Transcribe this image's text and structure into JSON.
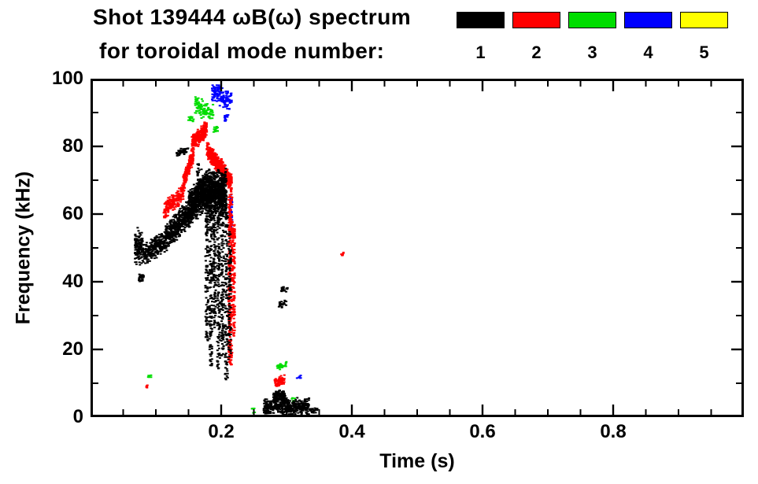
{
  "chart_data": {
    "type": "scatter",
    "title": "Shot 139444 ωB(ω) spectrum",
    "subtitle": "for toroidal mode number:",
    "xlabel": "Time (s)",
    "ylabel": "Frequency (kHz)",
    "xlim": [
      0.0,
      1.0
    ],
    "ylim": [
      0,
      100
    ],
    "xticks": [
      {
        "v": 0.2,
        "label": "0.2"
      },
      {
        "v": 0.4,
        "label": "0.4"
      },
      {
        "v": 0.6,
        "label": "0.6"
      },
      {
        "v": 0.8,
        "label": "0.8"
      }
    ],
    "yticks": [
      {
        "v": 0,
        "label": "0"
      },
      {
        "v": 20,
        "label": "20"
      },
      {
        "v": 40,
        "label": "40"
      },
      {
        "v": 60,
        "label": "60"
      },
      {
        "v": 80,
        "label": "80"
      },
      {
        "v": 100,
        "label": "100"
      }
    ],
    "x_minor_step": 0.05,
    "y_minor_step": 10,
    "grid": false,
    "legend_position": "top-right",
    "series": [
      {
        "name": "1",
        "color": "#000000",
        "clusters": [
          {
            "kind": "band",
            "t": [
              0.068,
              0.08
            ],
            "f": [
              50,
              50
            ],
            "hw": 6,
            "n": 120
          },
          {
            "kind": "band",
            "t": [
              0.074,
              0.082
            ],
            "f": [
              41,
              41.5
            ],
            "hw": 1.5,
            "n": 25
          },
          {
            "kind": "band",
            "t": [
              0.08,
              0.115
            ],
            "f": [
              48,
              52
            ],
            "hw": 3.5,
            "n": 260
          },
          {
            "kind": "band",
            "t": [
              0.115,
              0.15
            ],
            "f": [
              53,
              60
            ],
            "hw": 4.5,
            "n": 420
          },
          {
            "kind": "band",
            "t": [
              0.15,
              0.18
            ],
            "f": [
              61,
              68
            ],
            "hw": 6,
            "n": 650
          },
          {
            "kind": "band",
            "t": [
              0.18,
              0.208
            ],
            "f": [
              66,
              66
            ],
            "hw": 8,
            "n": 700
          },
          {
            "kind": "band",
            "t": [
              0.132,
              0.15
            ],
            "f": [
              78,
              79
            ],
            "hw": 1.2,
            "n": 45
          },
          {
            "kind": "vline",
            "t": 0.165,
            "f": [
              62,
              75
            ],
            "jit": 0.002,
            "n": 40
          },
          {
            "kind": "vline",
            "t": 0.171,
            "f": [
              60,
              74
            ],
            "jit": 0.002,
            "n": 36
          },
          {
            "kind": "vline",
            "t": 0.178,
            "f": [
              22,
              66
            ],
            "jit": 0.0022,
            "n": 130
          },
          {
            "kind": "vline",
            "t": 0.184,
            "f": [
              15,
              70
            ],
            "jit": 0.0022,
            "n": 150
          },
          {
            "kind": "vline",
            "t": 0.19,
            "f": [
              26,
              72
            ],
            "jit": 0.0022,
            "n": 130
          },
          {
            "kind": "vline",
            "t": 0.196,
            "f": [
              13,
              70
            ],
            "jit": 0.0022,
            "n": 150
          },
          {
            "kind": "vline",
            "t": 0.202,
            "f": [
              18,
              66
            ],
            "jit": 0.0022,
            "n": 130
          },
          {
            "kind": "vline",
            "t": 0.208,
            "f": [
              11,
              62
            ],
            "jit": 0.0022,
            "n": 110
          },
          {
            "kind": "vline",
            "t": 0.213,
            "f": [
              17,
              55
            ],
            "jit": 0.002,
            "n": 90
          },
          {
            "kind": "band",
            "t": [
              0.288,
              0.3
            ],
            "f": [
              33,
              34
            ],
            "hw": 1.2,
            "n": 25
          },
          {
            "kind": "band",
            "t": [
              0.292,
              0.302
            ],
            "f": [
              37.5,
              38
            ],
            "hw": 1.0,
            "n": 18
          },
          {
            "kind": "band",
            "t": [
              0.265,
              0.335
            ],
            "f": [
              3,
              3
            ],
            "hw": 2.8,
            "n": 420
          },
          {
            "kind": "band",
            "t": [
              0.28,
              0.298
            ],
            "f": [
              6,
              6.5
            ],
            "hw": 2.0,
            "n": 130
          },
          {
            "kind": "band",
            "t": [
              0.335,
              0.348
            ],
            "f": [
              2,
              2
            ],
            "hw": 1.2,
            "n": 25
          }
        ]
      },
      {
        "name": "2",
        "color": "#ff0000",
        "clusters": [
          {
            "kind": "band",
            "t": [
              0.112,
              0.142
            ],
            "f": [
              61,
              66
            ],
            "hw": 3,
            "n": 190
          },
          {
            "kind": "band",
            "t": [
              0.142,
              0.158
            ],
            "f": [
              69,
              78
            ],
            "hw": 2.8,
            "n": 170
          },
          {
            "kind": "band",
            "t": [
              0.155,
              0.178
            ],
            "f": [
              81,
              85
            ],
            "hw": 2.8,
            "n": 240
          },
          {
            "kind": "band",
            "t": [
              0.178,
              0.198
            ],
            "f": [
              79,
              74
            ],
            "hw": 2.8,
            "n": 240
          },
          {
            "kind": "band",
            "t": [
              0.198,
              0.216
            ],
            "f": [
              74,
              69
            ],
            "hw": 3.2,
            "n": 280
          },
          {
            "kind": "vline",
            "t": 0.214,
            "f": [
              15,
              66
            ],
            "jit": 0.0028,
            "n": 280
          },
          {
            "kind": "vline",
            "t": 0.219,
            "f": [
              24,
              58
            ],
            "jit": 0.002,
            "n": 120
          },
          {
            "kind": "band",
            "t": [
              0.282,
              0.297
            ],
            "f": [
              10,
              11
            ],
            "hw": 1.8,
            "n": 70
          },
          {
            "kind": "band",
            "t": [
              0.384,
              0.389
            ],
            "f": [
              48,
              48
            ],
            "hw": 0.8,
            "n": 8
          },
          {
            "kind": "band",
            "t": [
              0.083,
              0.088
            ],
            "f": [
              9,
              9
            ],
            "hw": 0.8,
            "n": 6
          }
        ]
      },
      {
        "name": "3",
        "color": "#00dd00",
        "clusters": [
          {
            "kind": "band",
            "t": [
              0.16,
              0.188
            ],
            "f": [
              92,
              90
            ],
            "hw": 3,
            "n": 100
          },
          {
            "kind": "band",
            "t": [
              0.15,
              0.158
            ],
            "f": [
              88,
              88
            ],
            "hw": 1,
            "n": 16
          },
          {
            "kind": "band",
            "t": [
              0.188,
              0.195
            ],
            "f": [
              85,
              85
            ],
            "hw": 1.2,
            "n": 14
          },
          {
            "kind": "band",
            "t": [
              0.285,
              0.302
            ],
            "f": [
              15,
              15.5
            ],
            "hw": 1.4,
            "n": 30
          },
          {
            "kind": "band",
            "t": [
              0.088,
              0.094
            ],
            "f": [
              12,
              12
            ],
            "hw": 0.9,
            "n": 7
          },
          {
            "kind": "band",
            "t": [
              0.245,
              0.252
            ],
            "f": [
              2,
              2
            ],
            "hw": 0.8,
            "n": 6
          },
          {
            "kind": "band",
            "t": [
              0.308,
              0.314
            ],
            "f": [
              5,
              5
            ],
            "hw": 0.8,
            "n": 6
          }
        ]
      },
      {
        "name": "4",
        "color": "#0000ff",
        "clusters": [
          {
            "kind": "band",
            "t": [
              0.186,
              0.216
            ],
            "f": [
              96,
              93
            ],
            "hw": 3.5,
            "n": 140
          },
          {
            "kind": "vline",
            "t": 0.215,
            "f": [
              56,
              66
            ],
            "jit": 0.0018,
            "n": 55
          },
          {
            "kind": "band",
            "t": [
              0.205,
              0.212
            ],
            "f": [
              88,
              89
            ],
            "hw": 1.2,
            "n": 16
          },
          {
            "kind": "band",
            "t": [
              0.316,
              0.322
            ],
            "f": [
              12,
              12
            ],
            "hw": 0.8,
            "n": 6
          }
        ]
      },
      {
        "name": "5",
        "color": "#ffff00",
        "clusters": []
      }
    ]
  }
}
